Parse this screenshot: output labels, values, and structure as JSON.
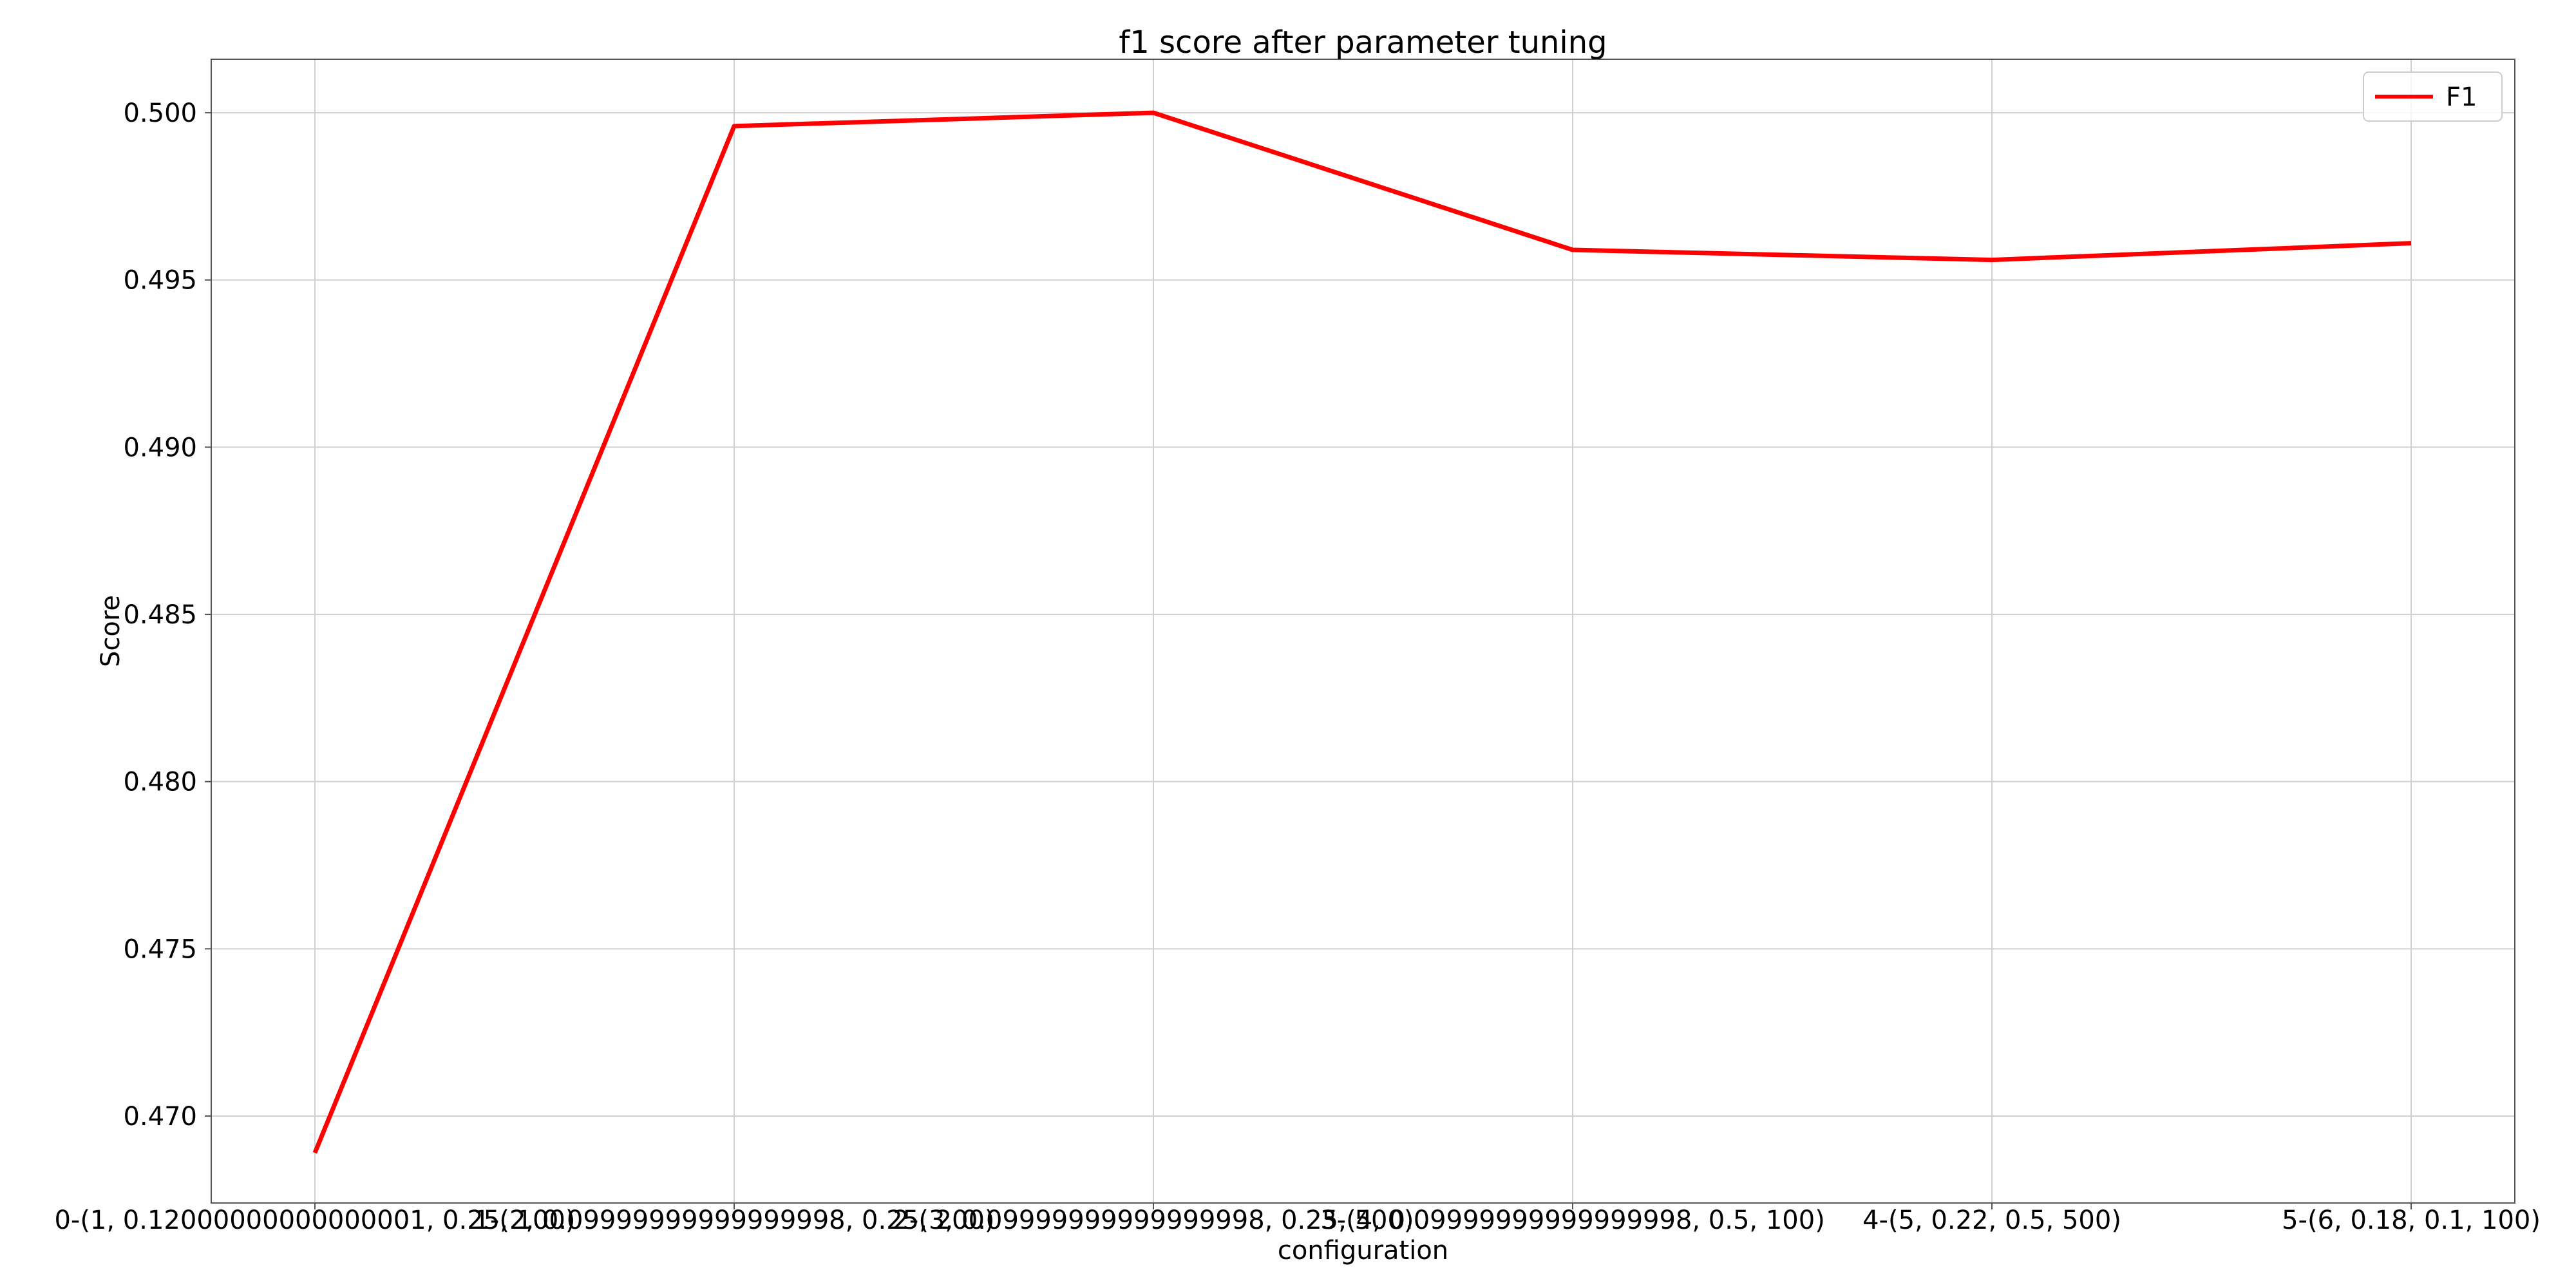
{
  "chart_data": {
    "type": "line",
    "title": "f1 score after parameter tuning",
    "xlabel": "configuration",
    "ylabel": "Score",
    "categories": [
      "0-(1, 0.12000000000000001, 0.25, 100)",
      "1-(2, 0.09999999999999998, 0.25, 200)",
      "2-(3, 0.09999999999999998, 0.25, 500)",
      "3-(4, 0.09999999999999998, 0.5, 100)",
      "4-(5, 0.22, 0.5, 500)",
      "5-(6, 0.18, 0.1, 100)"
    ],
    "series": [
      {
        "name": "F1",
        "color": "#ff0000",
        "values": [
          0.4689,
          0.4996,
          0.5,
          0.4959,
          0.4956,
          0.4961
        ]
      }
    ],
    "ylim": [
      0.4674,
      0.5016
    ],
    "yticks": [
      0.47,
      0.475,
      0.48,
      0.485,
      0.49,
      0.495,
      0.5
    ],
    "yticklabels": [
      "0.470",
      "0.475",
      "0.480",
      "0.485",
      "0.490",
      "0.495",
      "0.500"
    ],
    "grid": true,
    "legend_position": "top-right"
  }
}
